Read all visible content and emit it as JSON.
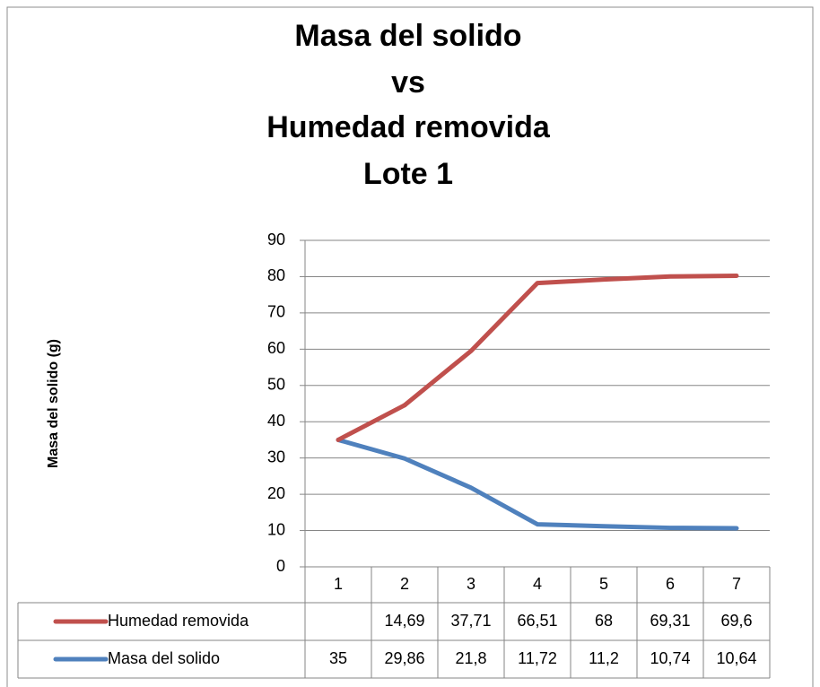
{
  "chart_data": {
    "type": "line",
    "stacked": true,
    "title": [
      "Masa del solido",
      "vs",
      "Humedad removida",
      "Lote 1"
    ],
    "y_label": "Masa del solido (g)",
    "categories": [
      "1",
      "2",
      "3",
      "4",
      "5",
      "6",
      "7"
    ],
    "series": [
      {
        "name": "Humedad removida",
        "color": "#c0504d",
        "values": [
          null,
          14.69,
          37.71,
          66.51,
          68,
          69.31,
          69.6
        ],
        "value_labels": [
          null,
          "14,69",
          "37,71",
          "66,51",
          "68",
          "69,31",
          "69,6"
        ]
      },
      {
        "name": "Masa del solido",
        "color": "#4f81bd",
        "values": [
          35,
          29.86,
          21.8,
          11.72,
          11.2,
          10.74,
          10.64
        ],
        "value_labels": [
          "35",
          "29,86",
          "21,8",
          "11,72",
          "11,2",
          "10,74",
          "10,64"
        ]
      }
    ],
    "ylim": [
      0,
      90
    ],
    "yticks": [
      0,
      10,
      20,
      30,
      40,
      50,
      60,
      70,
      80,
      90
    ],
    "grid": true
  }
}
